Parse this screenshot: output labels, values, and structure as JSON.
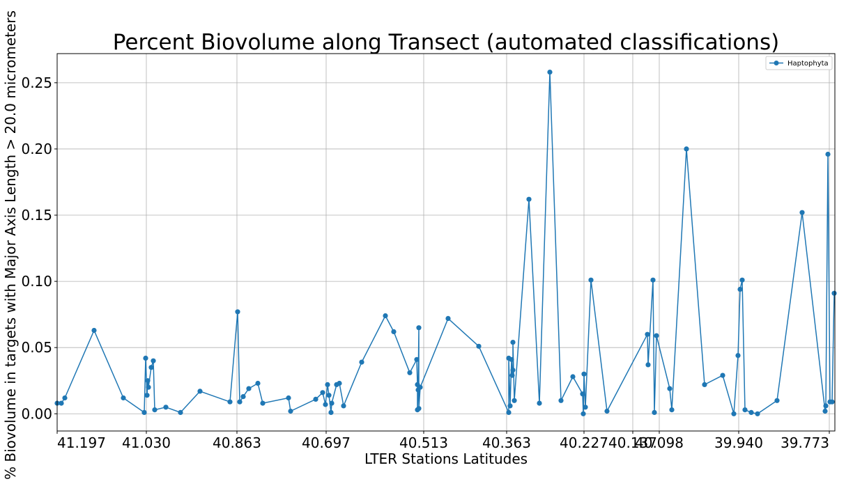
{
  "chart_data": {
    "type": "line",
    "title": "Percent Biovolume along Transect (automated classifications)",
    "xlabel": "LTER Stations Latitudes",
    "ylabel": "% Biovolume in targets with Major Axis Length > 20.0 micrometers",
    "x_tick_labels": [
      "41.197",
      "41.030",
      "40.863",
      "40.697",
      "40.513",
      "40.363",
      "40.227",
      "40.137",
      "40.098",
      "39.940",
      "39.773"
    ],
    "y_ticks": [
      0.0,
      0.05,
      0.1,
      0.15,
      0.2,
      0.25
    ],
    "y_tick_labels": [
      "0.00",
      "0.05",
      "0.10",
      "0.15",
      "0.20",
      "0.25"
    ],
    "ylim": [
      -0.013,
      0.272
    ],
    "grid": true,
    "legend_position": "upper right",
    "series": [
      {
        "name": "Haptophyta",
        "color": "#1f77b4",
        "marker": "circle",
        "values": [
          0.008,
          0.008,
          0.012,
          0.063,
          0.012,
          0.001,
          0.042,
          0.014,
          0.025,
          0.02,
          0.035,
          0.04,
          0.003,
          0.005,
          0.001,
          0.017,
          0.009,
          0.077,
          0.009,
          0.013,
          0.019,
          0.023,
          0.008,
          0.012,
          0.002,
          0.011,
          0.016,
          0.007,
          0.022,
          0.014,
          0.001,
          0.008,
          0.022,
          0.023,
          0.006,
          0.039,
          0.074,
          0.062,
          0.031,
          0.041,
          0.022,
          0.003,
          0.018,
          0.065,
          0.004,
          0.02,
          0.072,
          0.051,
          0.001,
          0.042,
          0.006,
          0.041,
          0.029,
          0.033,
          0.054,
          0.01,
          0.162,
          0.008,
          0.258,
          0.01,
          0.028,
          0.015,
          0.0,
          0.03,
          0.005,
          0.101,
          0.002,
          0.06,
          0.037,
          0.101,
          0.001,
          0.059,
          0.019,
          0.003,
          0.2,
          0.022,
          0.029,
          0.0,
          0.044,
          0.094,
          0.101,
          0.003,
          0.001,
          0.0,
          0.01,
          0.152,
          0.002,
          0.006,
          0.196,
          0.009,
          0.009,
          0.091
        ]
      }
    ]
  }
}
